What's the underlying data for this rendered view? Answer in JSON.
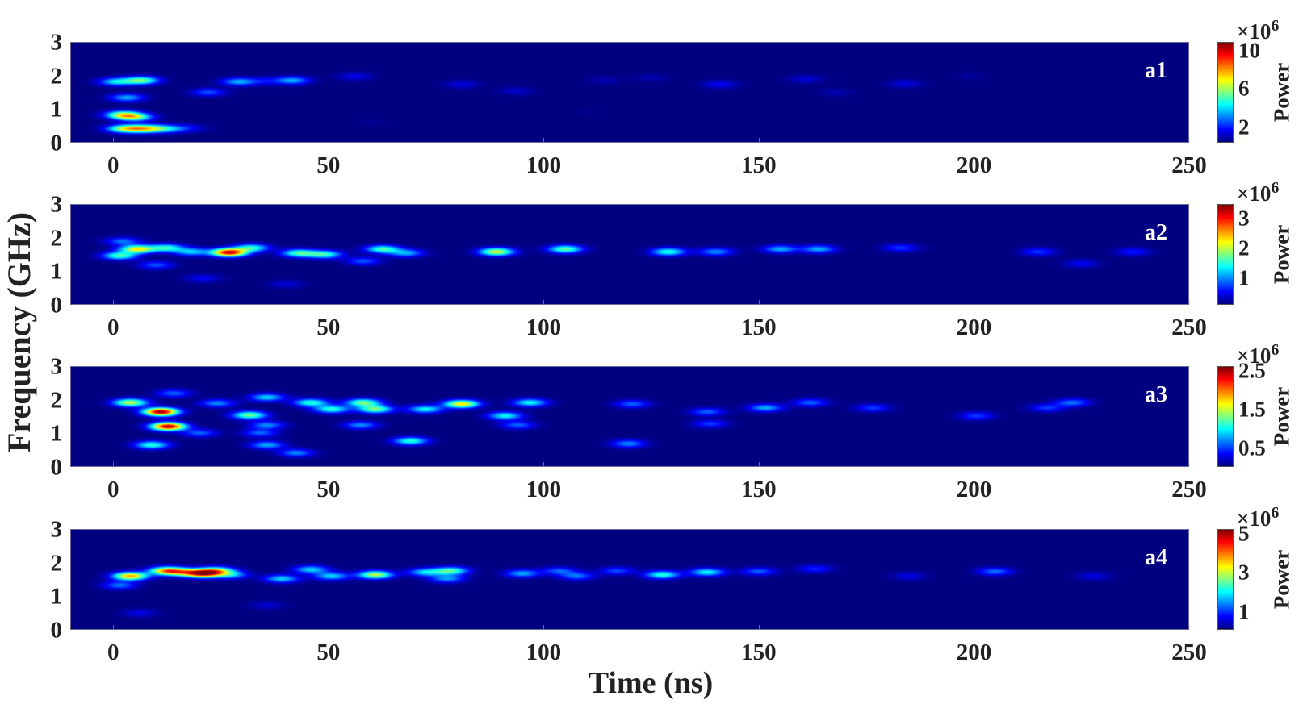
{
  "axes": {
    "xlabel": "Time (ns)",
    "ylabel": "Frequency (GHz)"
  },
  "chart_data": [
    {
      "type": "heatmap",
      "panel_label": "a1",
      "colormap": "jet",
      "xlim": [
        -10,
        250
      ],
      "ylim": [
        0,
        3
      ],
      "xticks": [
        "0",
        "50",
        "100",
        "150",
        "200",
        "250"
      ],
      "yticks": [
        "0",
        "1",
        "2",
        "3"
      ],
      "grid": false,
      "colorbar": {
        "label": "Power",
        "exponent_base": "×10",
        "exponent_power": "6",
        "ticks": [
          "2",
          "6",
          "10"
        ],
        "tick_values": [
          2,
          6,
          10
        ],
        "clim": [
          0.4,
          10.9
        ]
      },
      "blobs": [
        [
          2,
          0.4,
          5
        ],
        [
          6,
          0.4,
          5.5
        ],
        [
          10,
          0.4,
          4
        ],
        [
          14,
          0.4,
          2.2
        ],
        [
          18,
          0.42,
          1.2
        ],
        [
          2,
          0.82,
          6
        ],
        [
          5,
          0.75,
          5
        ],
        [
          3,
          1.34,
          3.5
        ],
        [
          0.5,
          1.82,
          4
        ],
        [
          6.4,
          1.86,
          5.5
        ],
        [
          22,
          1.5,
          2.5
        ],
        [
          29,
          1.82,
          3.5
        ],
        [
          41.5,
          1.86,
          3.5
        ],
        [
          35,
          1.84,
          1.5
        ],
        [
          56,
          1.98,
          1.5
        ],
        [
          81,
          1.74,
          1.4
        ],
        [
          93.5,
          1.54,
          1.2
        ],
        [
          114,
          1.86,
          0.9
        ],
        [
          125,
          1.94,
          0.9
        ],
        [
          141,
          1.74,
          1.6
        ],
        [
          161,
          1.9,
          1.3
        ],
        [
          168,
          1.5,
          0.9
        ],
        [
          184,
          1.76,
          1.4
        ],
        [
          199,
          1.98,
          0.7
        ],
        [
          60,
          0.6,
          0.6
        ],
        [
          110,
          0.9,
          0.5
        ],
        [
          150,
          1.2,
          0.4
        ]
      ]
    },
    {
      "type": "heatmap",
      "panel_label": "a2",
      "colormap": "jet",
      "xlim": [
        -10,
        250
      ],
      "ylim": [
        0,
        3
      ],
      "xticks": [
        "0",
        "50",
        "100",
        "150",
        "200",
        "250"
      ],
      "yticks": [
        "0",
        "1",
        "2",
        "3"
      ],
      "grid": false,
      "colorbar": {
        "label": "Power",
        "exponent_base": "×10",
        "exponent_power": "6",
        "ticks": [
          "1",
          "2",
          "3"
        ],
        "tick_values": [
          1,
          2,
          3
        ],
        "clim": [
          0.1,
          3.5
        ]
      },
      "blobs": [
        [
          26.8,
          1.56,
          3.3
        ],
        [
          5.4,
          1.66,
          2.2
        ],
        [
          1.3,
          1.46,
          1.6
        ],
        [
          12.2,
          1.7,
          1.5
        ],
        [
          18,
          1.58,
          1.2
        ],
        [
          32,
          1.7,
          1.5
        ],
        [
          43,
          1.54,
          1.6
        ],
        [
          49,
          1.5,
          1.5
        ],
        [
          62.5,
          1.66,
          1.6
        ],
        [
          68,
          1.54,
          1.1
        ],
        [
          89,
          1.58,
          2.1
        ],
        [
          105,
          1.66,
          1.7
        ],
        [
          58,
          1.3,
          0.8
        ],
        [
          9.8,
          1.18,
          0.8
        ],
        [
          20.6,
          0.78,
          0.5
        ],
        [
          2,
          1.9,
          0.9
        ],
        [
          129,
          1.58,
          1.5
        ],
        [
          140,
          1.58,
          1.0
        ],
        [
          155,
          1.66,
          1.1
        ],
        [
          164,
          1.66,
          1.1
        ],
        [
          183,
          1.7,
          0.7
        ],
        [
          215,
          1.58,
          0.7
        ],
        [
          237,
          1.58,
          0.6
        ],
        [
          225,
          1.22,
          0.5
        ],
        [
          40,
          0.6,
          0.4
        ]
      ]
    },
    {
      "type": "heatmap",
      "panel_label": "a3",
      "colormap": "jet",
      "xlim": [
        -10,
        250
      ],
      "ylim": [
        0,
        3
      ],
      "xticks": [
        "0",
        "50",
        "100",
        "150",
        "200",
        "250"
      ],
      "yticks": [
        "0",
        "1",
        "2",
        "3"
      ],
      "grid": false,
      "colorbar": {
        "label": "Power",
        "exponent_base": "×10",
        "exponent_power": "6",
        "ticks": [
          "0.5",
          "1.5",
          "2.5"
        ],
        "tick_values": [
          0.5,
          1.5,
          2.5
        ],
        "clim": [
          0.02,
          2.63
        ]
      },
      "blobs": [
        [
          10.9,
          1.64,
          2.6
        ],
        [
          12.6,
          1.2,
          2.5
        ],
        [
          3.8,
          1.92,
          1.5
        ],
        [
          8.8,
          0.64,
          1.1
        ],
        [
          13.9,
          2.2,
          0.6
        ],
        [
          31.5,
          1.54,
          1.3
        ],
        [
          35.6,
          2.08,
          0.9
        ],
        [
          35.6,
          1.24,
          0.7
        ],
        [
          34,
          1.0,
          0.6
        ],
        [
          35.6,
          0.64,
          0.8
        ],
        [
          42.4,
          0.4,
          0.7
        ],
        [
          45.8,
          1.92,
          1.1
        ],
        [
          50.6,
          1.72,
          1.1
        ],
        [
          58,
          1.92,
          1.3
        ],
        [
          60.8,
          1.72,
          1.3
        ],
        [
          57.4,
          1.24,
          0.7
        ],
        [
          72.4,
          1.72,
          1.0
        ],
        [
          80.9,
          1.88,
          1.7
        ],
        [
          69,
          0.76,
          1.1
        ],
        [
          91,
          1.52,
          1.0
        ],
        [
          96.8,
          1.92,
          1.0
        ],
        [
          94,
          1.24,
          0.6
        ],
        [
          120.6,
          1.88,
          0.6
        ],
        [
          119.7,
          0.68,
          0.7
        ],
        [
          138,
          1.64,
          0.6
        ],
        [
          151.6,
          1.76,
          0.8
        ],
        [
          162,
          1.92,
          0.6
        ],
        [
          138.7,
          1.28,
          0.5
        ],
        [
          200.7,
          1.52,
          0.5
        ],
        [
          223,
          1.92,
          0.65
        ],
        [
          217,
          1.76,
          0.5
        ],
        [
          176.5,
          1.76,
          0.5
        ],
        [
          20,
          1.0,
          0.6
        ],
        [
          24,
          1.9,
          0.7
        ]
      ]
    },
    {
      "type": "heatmap",
      "panel_label": "a4",
      "colormap": "jet",
      "xlim": [
        -10,
        250
      ],
      "ylim": [
        0,
        3
      ],
      "xticks": [
        "0",
        "50",
        "100",
        "150",
        "200",
        "250"
      ],
      "yticks": [
        "0",
        "1",
        "2",
        "3"
      ],
      "grid": false,
      "colorbar": {
        "label": "Power",
        "exponent_base": "×10",
        "exponent_power": "6",
        "ticks": [
          "1",
          "3",
          "5"
        ],
        "tick_values": [
          1,
          3,
          5
        ],
        "clim": [
          0.08,
          5.25
        ]
      },
      "blobs": [
        [
          3.8,
          1.6,
          3.8
        ],
        [
          12.2,
          1.76,
          3.6
        ],
        [
          20.6,
          1.68,
          4.5
        ],
        [
          23.8,
          1.76,
          2.8
        ],
        [
          27.2,
          1.64,
          1.6
        ],
        [
          16,
          1.72,
          2.2
        ],
        [
          1.3,
          1.32,
          1.3
        ],
        [
          39,
          1.52,
          1.8
        ],
        [
          45.8,
          1.8,
          1.8
        ],
        [
          50.6,
          1.6,
          1.8
        ],
        [
          60.8,
          1.64,
          3.0
        ],
        [
          72.4,
          1.72,
          1.8
        ],
        [
          78.4,
          1.76,
          2.4
        ],
        [
          77.5,
          1.52,
          1.5
        ],
        [
          95,
          1.68,
          1.6
        ],
        [
          103.6,
          1.76,
          1.2
        ],
        [
          107.7,
          1.6,
          1.3
        ],
        [
          117,
          1.76,
          1.1
        ],
        [
          127.6,
          1.64,
          2.2
        ],
        [
          138,
          1.72,
          2.0
        ],
        [
          150,
          1.74,
          1.2
        ],
        [
          163,
          1.82,
          0.9
        ],
        [
          205,
          1.74,
          1.3
        ],
        [
          185,
          1.6,
          0.6
        ],
        [
          228,
          1.6,
          0.6
        ],
        [
          5.8,
          0.48,
          0.6
        ],
        [
          35.6,
          0.72,
          0.5
        ]
      ]
    }
  ]
}
